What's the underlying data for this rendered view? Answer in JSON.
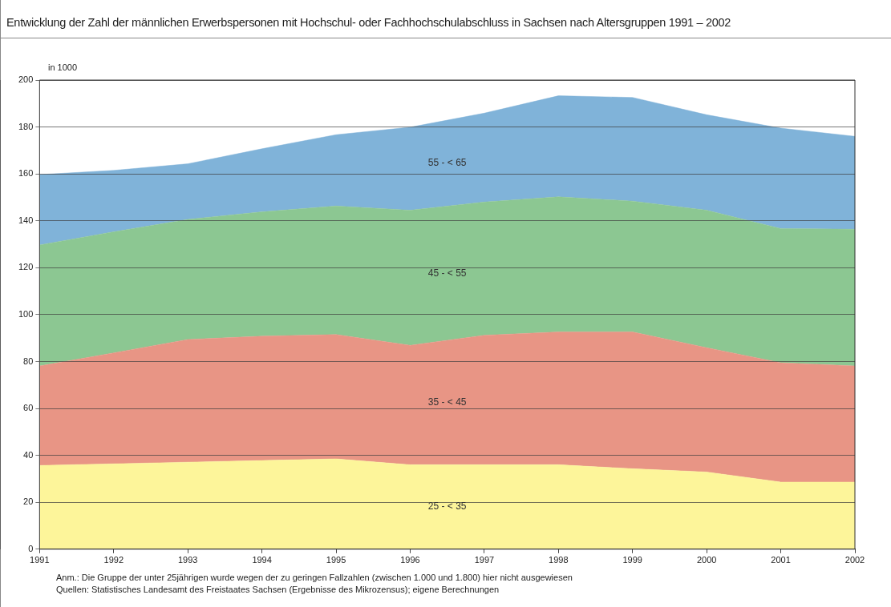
{
  "chart_data": {
    "type": "area",
    "title": "Entwicklung der Zahl der männlichen Erwerbspersonen mit Hochschul- oder Fachhochschulabschluss in Sachsen nach Altersgruppen 1991 – 2002",
    "ylabel": "in 1000",
    "x": [
      1991,
      1992,
      1993,
      1994,
      1995,
      1996,
      1997,
      1998,
      1999,
      2000,
      2001,
      2002
    ],
    "xlim": [
      1991,
      2002
    ],
    "xticks": [
      1991,
      1992,
      1993,
      1994,
      1995,
      1996,
      1997,
      1998,
      1999,
      2000,
      2001,
      2002
    ],
    "ylim": [
      0,
      200
    ],
    "yticks": [
      0,
      20,
      40,
      60,
      80,
      100,
      120,
      140,
      160,
      180,
      200
    ],
    "stacked": true,
    "grid": "y",
    "legend": false,
    "series": [
      {
        "name": "25 - < 35",
        "color": "#fdf59a",
        "values": [
          35.7,
          36.4,
          37.1,
          37.8,
          38.5,
          36,
          36,
          36,
          34.3,
          32.9,
          28.6,
          28.6
        ]
      },
      {
        "name": "35 - < 45",
        "color": "#e89585",
        "values": [
          42.4,
          47.3,
          52.3,
          53,
          53,
          50.9,
          55.2,
          56.6,
          58.3,
          53,
          50.9,
          49.5
        ]
      },
      {
        "name": "45 - < 55",
        "color": "#8cc792",
        "values": [
          51.6,
          51.6,
          51.2,
          53,
          54.8,
          57.6,
          56.8,
          57.6,
          55.8,
          58.6,
          57.2,
          58.3
        ]
      },
      {
        "name": "55 - < 65",
        "color": "#80b3d9",
        "values": [
          30,
          26.2,
          23.7,
          26.9,
          30.4,
          35.4,
          37.9,
          43.1,
          44.2,
          40.7,
          42.8,
          39.6
        ]
      }
    ],
    "annotations": [
      "Anm.: Die Gruppe der unter 25jährigen wurde wegen der zu geringen Fallzahlen (zwischen 1.000 und 1.800) hier nicht ausgewiesen",
      "Quellen: Statistisches Landesamt des Freistaates Sachsen (Ergebnisse des Mikrozensus); eigene Berechnungen"
    ]
  }
}
